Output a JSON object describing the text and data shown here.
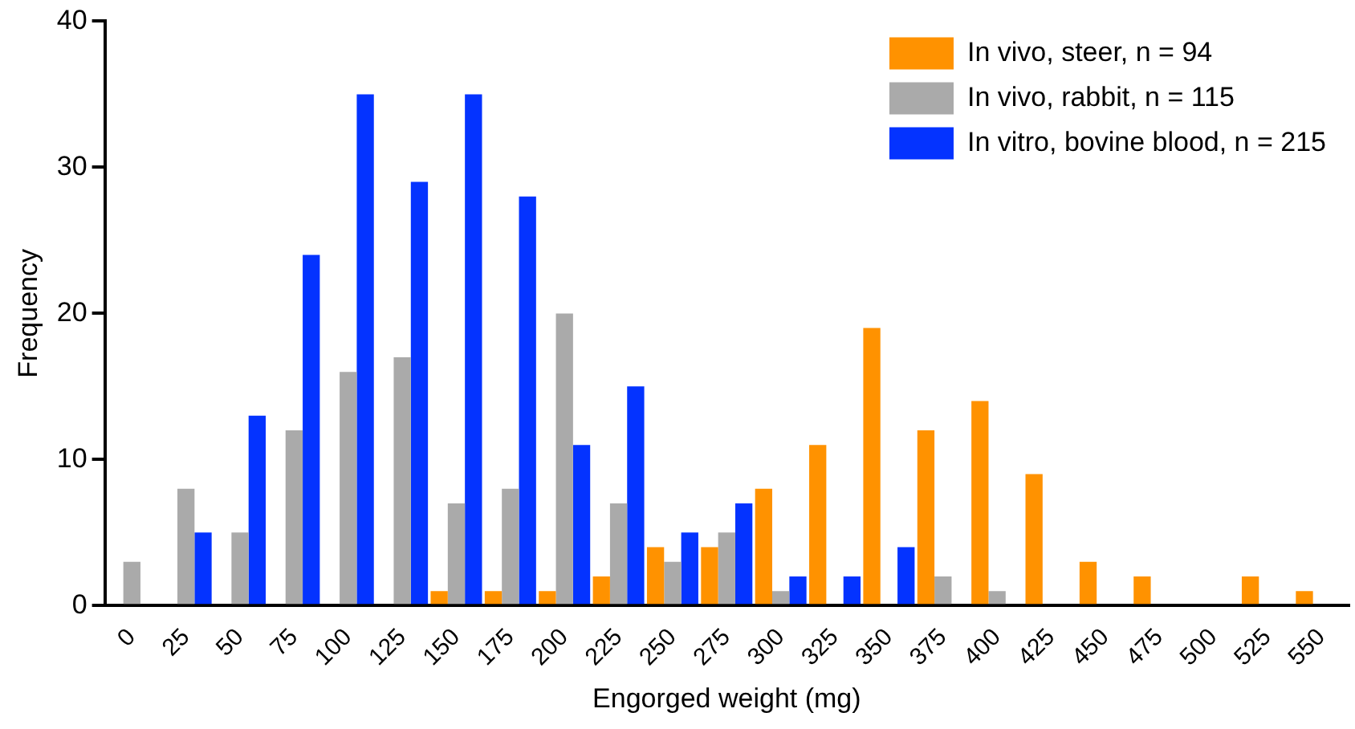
{
  "chart_data": {
    "type": "bar",
    "xlabel": "Engorged weight (mg)",
    "ylabel": "Frequency",
    "categories": [
      "0",
      "25",
      "50",
      "75",
      "100",
      "125",
      "150",
      "175",
      "200",
      "225",
      "250",
      "275",
      "300",
      "325",
      "350",
      "375",
      "400",
      "425",
      "450",
      "475",
      "500",
      "525",
      "550"
    ],
    "series": [
      {
        "name": "In vivo, steer, n = 94",
        "color": "#ff9200",
        "values": [
          0,
          0,
          0,
          0,
          0,
          0,
          1,
          1,
          1,
          2,
          4,
          4,
          8,
          11,
          19,
          12,
          14,
          9,
          3,
          2,
          0,
          2,
          1
        ]
      },
      {
        "name": "In vivo, rabbit, n = 115",
        "color": "#aaaaaa",
        "values": [
          3,
          8,
          5,
          12,
          16,
          17,
          7,
          8,
          20,
          7,
          3,
          5,
          1,
          0,
          0,
          2,
          1,
          0,
          0,
          0,
          0,
          0,
          0
        ]
      },
      {
        "name": "In vitro, bovine blood, n = 215",
        "color": "#0433ff",
        "values": [
          0,
          5,
          13,
          24,
          35,
          29,
          35,
          28,
          11,
          15,
          5,
          7,
          2,
          2,
          4,
          0,
          0,
          0,
          0,
          0,
          0,
          0,
          0
        ]
      }
    ],
    "ylim": [
      0,
      40
    ],
    "yticks": [
      0,
      10,
      20,
      30,
      40
    ],
    "grid": false,
    "legend": "top right"
  }
}
